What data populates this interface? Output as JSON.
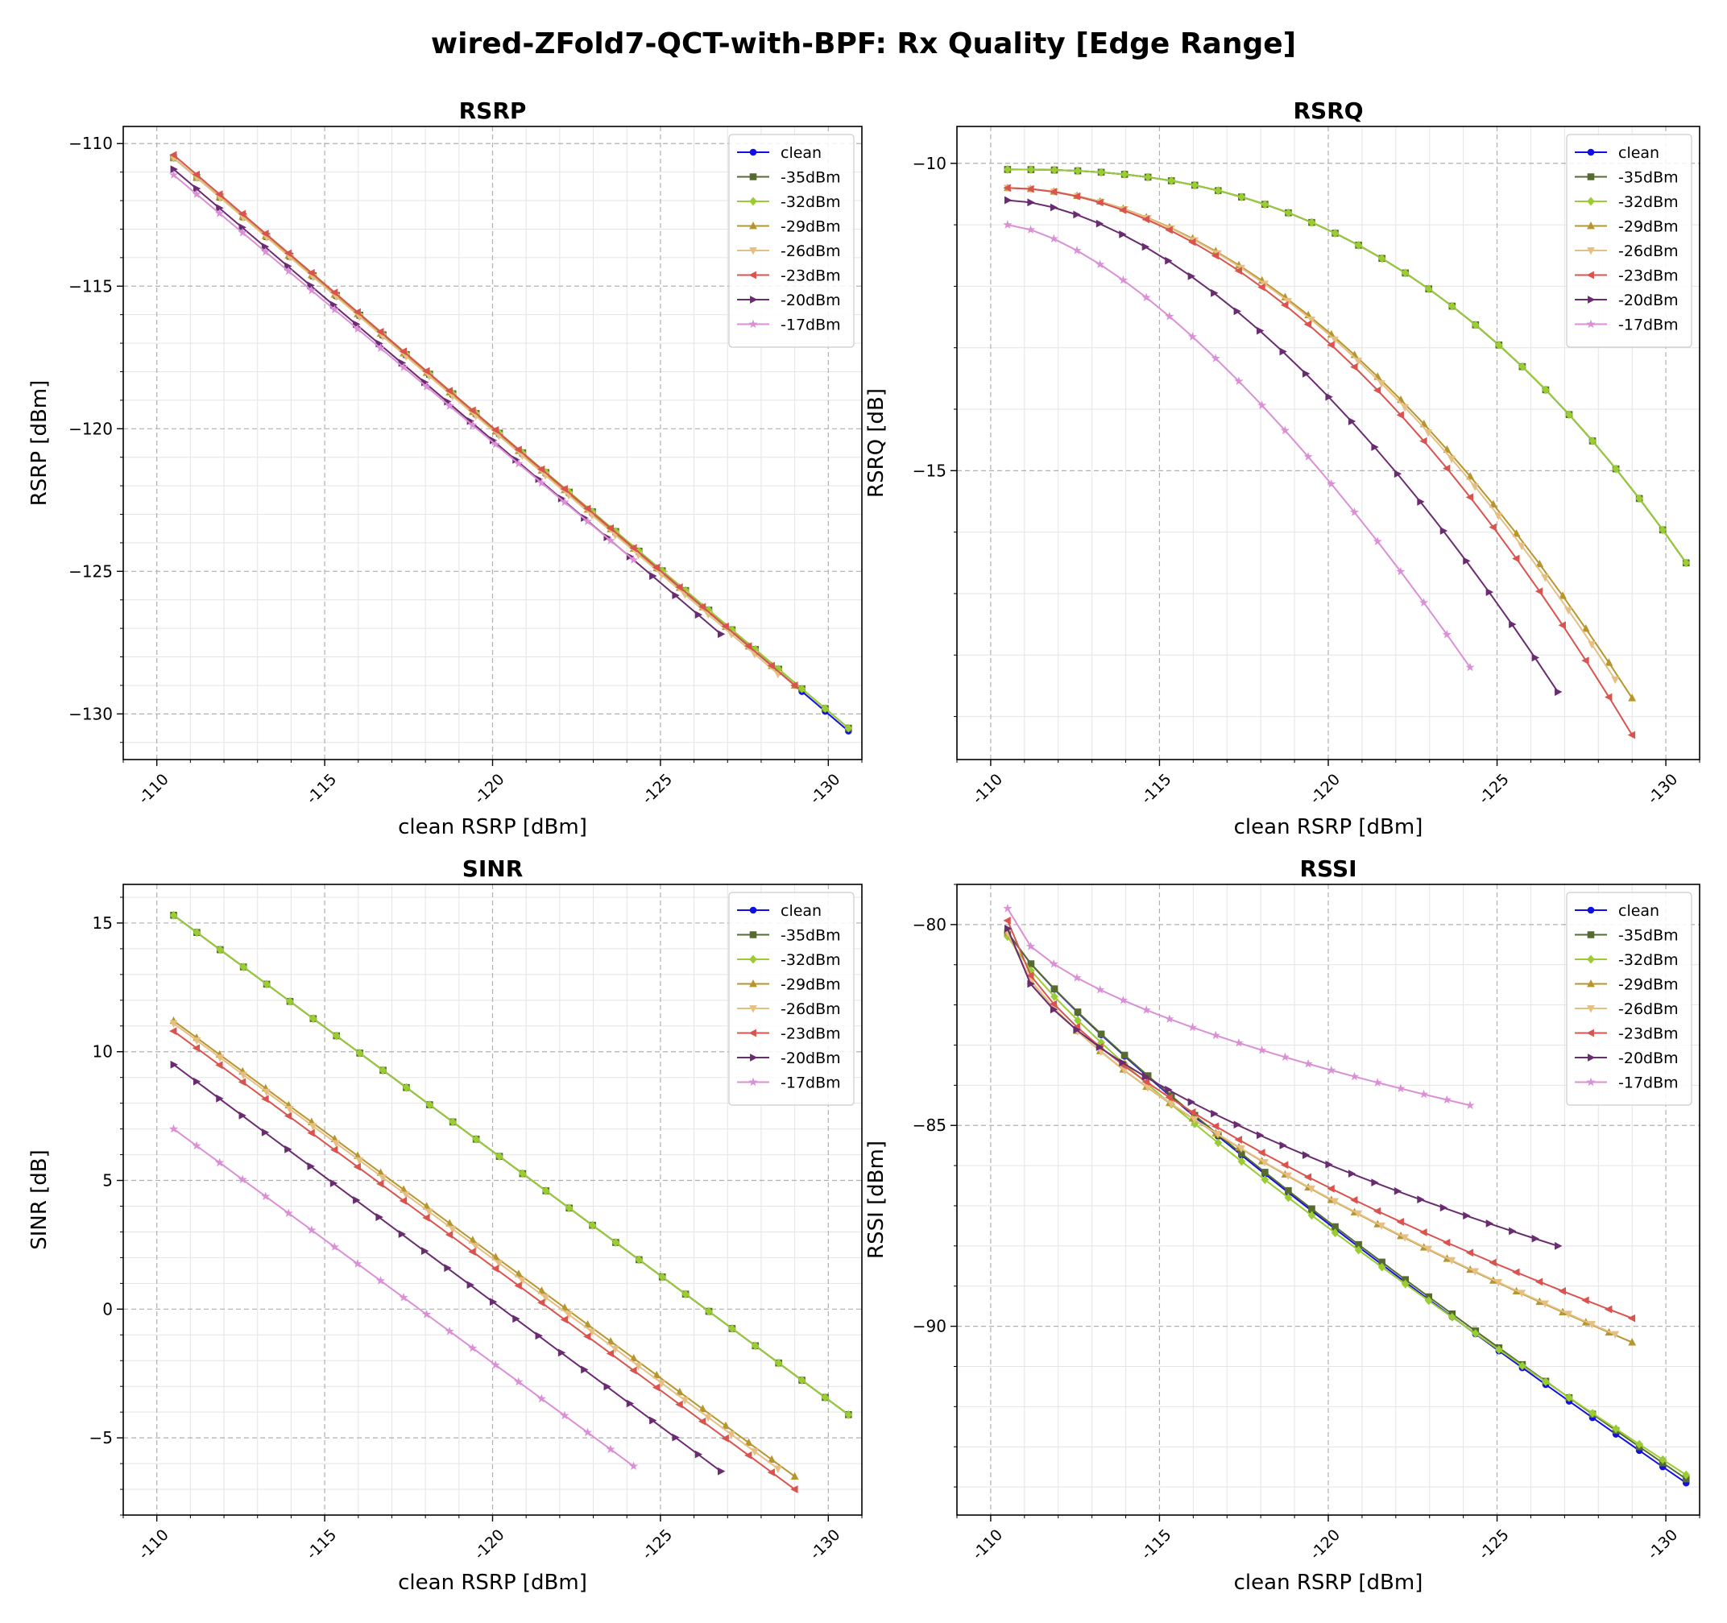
{
  "suptitle": "wired-ZFold7-QCT-with-BPF: Rx Quality [Edge Range]",
  "colors": {
    "clean": "#1010e6",
    "-35dBm": "#556b2f",
    "-32dBm": "#9acd32",
    "-29dBm": "#b8962e",
    "-26dBm": "#e6bf83",
    "-23dBm": "#d9534f",
    "-20dBm": "#6a2c70",
    "-17dBm": "#da8fd6"
  },
  "chart_data": [
    {
      "id": "rsrp",
      "type": "line",
      "title": "RSRP",
      "xlabel": "clean RSRP [dBm]",
      "ylabel": "RSRP [dBm]",
      "xlim": [
        -109,
        -131
      ],
      "ylim": [
        -131.6,
        -109.4
      ],
      "xticks": [
        -110,
        -115,
        -120,
        -125,
        -130
      ],
      "xtick_labels": [
        "-110",
        "-115",
        "-120",
        "-125",
        "-130"
      ],
      "yticks": [
        -110,
        -115,
        -120,
        -125,
        -130
      ],
      "ytick_labels": [
        "−110",
        "−115",
        "−120",
        "−125",
        "−130"
      ],
      "grid": true,
      "legend": "top-right",
      "series": [
        {
          "name": "clean",
          "x_start": -110.5,
          "x_end": -130.6,
          "n": 30,
          "y_start": -110.5,
          "y_end": -130.6,
          "curve": 1.0
        },
        {
          "name": "-35dBm",
          "x_start": -110.5,
          "x_end": -130.6,
          "n": 30,
          "y_start": -110.5,
          "y_end": -130.5,
          "curve": 1.0
        },
        {
          "name": "-32dBm",
          "x_start": -110.5,
          "x_end": -130.6,
          "n": 30,
          "y_start": -110.5,
          "y_end": -130.5,
          "curve": 1.0
        },
        {
          "name": "-29dBm",
          "x_start": -110.5,
          "x_end": -129.0,
          "n": 28,
          "y_start": -110.5,
          "y_end": -129.0,
          "curve": 1.0
        },
        {
          "name": "-26dBm",
          "x_start": -110.5,
          "x_end": -128.5,
          "n": 27,
          "y_start": -110.5,
          "y_end": -128.6,
          "curve": 1.0
        },
        {
          "name": "-23dBm",
          "x_start": -110.5,
          "x_end": -129.0,
          "n": 28,
          "y_start": -110.4,
          "y_end": -129.0,
          "curve": 1.0
        },
        {
          "name": "-20dBm",
          "x_start": -110.5,
          "x_end": -126.8,
          "n": 25,
          "y_start": -110.9,
          "y_end": -127.2,
          "curve": 1.0
        },
        {
          "name": "-17dBm",
          "x_start": -110.5,
          "x_end": -124.2,
          "n": 21,
          "y_start": -111.1,
          "y_end": -124.6,
          "curve": 1.0
        }
      ]
    },
    {
      "id": "rsrq",
      "type": "line",
      "title": "RSRQ",
      "xlabel": "clean RSRP [dBm]",
      "ylabel": "RSRQ [dB]",
      "xlim": [
        -109,
        -131
      ],
      "ylim": [
        -19.7,
        -9.4
      ],
      "xticks": [
        -110,
        -115,
        -120,
        -125,
        -130
      ],
      "xtick_labels": [
        "-110",
        "-115",
        "-120",
        "-125",
        "-130"
      ],
      "yticks": [
        -10,
        -15
      ],
      "ytick_labels": [
        "−10",
        "−15"
      ],
      "grid": true,
      "legend": "top-right",
      "series": [
        {
          "name": "clean",
          "x_start": -110.5,
          "x_end": -130.6,
          "n": 30,
          "y_start": -10.1,
          "y_end": -16.5,
          "curve": 2.5
        },
        {
          "name": "-35dBm",
          "x_start": -110.5,
          "x_end": -130.6,
          "n": 30,
          "y_start": -10.1,
          "y_end": -16.5,
          "curve": 2.5
        },
        {
          "name": "-32dBm",
          "x_start": -110.5,
          "x_end": -130.6,
          "n": 30,
          "y_start": -10.1,
          "y_end": -16.5,
          "curve": 2.5
        },
        {
          "name": "-29dBm",
          "x_start": -110.5,
          "x_end": -129.0,
          "n": 28,
          "y_start": -10.4,
          "y_end": -18.7,
          "curve": 1.9
        },
        {
          "name": "-26dBm",
          "x_start": -110.5,
          "x_end": -128.5,
          "n": 27,
          "y_start": -10.4,
          "y_end": -18.4,
          "curve": 1.9
        },
        {
          "name": "-23dBm",
          "x_start": -110.5,
          "x_end": -129.0,
          "n": 28,
          "y_start": -10.4,
          "y_end": -19.3,
          "curve": 1.9
        },
        {
          "name": "-20dBm",
          "x_start": -110.5,
          "x_end": -126.8,
          "n": 25,
          "y_start": -10.6,
          "y_end": -18.6,
          "curve": 1.7
        },
        {
          "name": "-17dBm",
          "x_start": -110.5,
          "x_end": -124.2,
          "n": 21,
          "y_start": -11.0,
          "y_end": -18.2,
          "curve": 1.5
        }
      ]
    },
    {
      "id": "sinr",
      "type": "line",
      "title": "SINR",
      "xlabel": "clean RSRP [dBm]",
      "ylabel": "SINR [dB]",
      "xlim": [
        -109,
        -131
      ],
      "ylim": [
        -8.0,
        16.5
      ],
      "xticks": [
        -110,
        -115,
        -120,
        -125,
        -130
      ],
      "xtick_labels": [
        "-110",
        "-115",
        "-120",
        "-125",
        "-130"
      ],
      "yticks": [
        15,
        10,
        5,
        0,
        -5
      ],
      "ytick_labels": [
        "15",
        "10",
        "5",
        "0",
        "−5"
      ],
      "grid": true,
      "legend": "top-right",
      "series": [
        {
          "name": "clean",
          "x_start": -110.5,
          "x_end": -130.6,
          "n": 30,
          "y_start": 15.3,
          "y_end": -4.1,
          "curve": 1.0
        },
        {
          "name": "-35dBm",
          "x_start": -110.5,
          "x_end": -130.6,
          "n": 30,
          "y_start": 15.3,
          "y_end": -4.1,
          "curve": 1.0
        },
        {
          "name": "-32dBm",
          "x_start": -110.5,
          "x_end": -130.6,
          "n": 30,
          "y_start": 15.3,
          "y_end": -4.1,
          "curve": 1.0
        },
        {
          "name": "-29dBm",
          "x_start": -110.5,
          "x_end": -129.0,
          "n": 28,
          "y_start": 11.2,
          "y_end": -6.5,
          "curve": 1.0
        },
        {
          "name": "-26dBm",
          "x_start": -110.5,
          "x_end": -128.5,
          "n": 27,
          "y_start": 11.1,
          "y_end": -6.2,
          "curve": 1.0
        },
        {
          "name": "-23dBm",
          "x_start": -110.5,
          "x_end": -129.0,
          "n": 28,
          "y_start": 10.8,
          "y_end": -7.0,
          "curve": 1.0
        },
        {
          "name": "-20dBm",
          "x_start": -110.5,
          "x_end": -126.8,
          "n": 25,
          "y_start": 9.5,
          "y_end": -6.3,
          "curve": 1.0
        },
        {
          "name": "-17dBm",
          "x_start": -110.5,
          "x_end": -124.2,
          "n": 21,
          "y_start": 7.0,
          "y_end": -6.1,
          "curve": 1.0
        }
      ]
    },
    {
      "id": "rssi",
      "type": "line",
      "title": "RSSI",
      "xlabel": "clean RSRP [dBm]",
      "ylabel": "RSSI [dBm]",
      "xlim": [
        -109,
        -131
      ],
      "ylim": [
        -94.7,
        -79.0
      ],
      "xticks": [
        -110,
        -115,
        -120,
        -125,
        -130
      ],
      "xtick_labels": [
        "-110",
        "-115",
        "-120",
        "-125",
        "-130"
      ],
      "yticks": [
        -80,
        -85,
        -90
      ],
      "ytick_labels": [
        "−80",
        "−85",
        "−90"
      ],
      "grid": true,
      "legend": "top-right",
      "series": [
        {
          "name": "clean",
          "x_start": -110.5,
          "x_end": -130.6,
          "n": 30,
          "y_start": -80.2,
          "y_end": -93.9,
          "curve": 0.85
        },
        {
          "name": "-35dBm",
          "x_start": -110.5,
          "x_end": -130.6,
          "n": 30,
          "y_start": -80.2,
          "y_end": -93.8,
          "curve": 0.85
        },
        {
          "name": "-32dBm",
          "x_start": -110.5,
          "x_end": -130.6,
          "n": 30,
          "y_start": -80.3,
          "y_end": -93.7,
          "curve": 0.82
        },
        {
          "name": "-29dBm",
          "x_start": -110.5,
          "x_end": -129.0,
          "n": 28,
          "y_start": -80.2,
          "y_end": -90.4,
          "curve": 0.65
        },
        {
          "name": "-26dBm",
          "x_start": -110.5,
          "x_end": -128.5,
          "n": 27,
          "y_start": -80.2,
          "y_end": -90.2,
          "curve": 0.65
        },
        {
          "name": "-23dBm",
          "x_start": -110.5,
          "x_end": -129.0,
          "n": 28,
          "y_start": -79.9,
          "y_end": -89.8,
          "curve": 0.6
        },
        {
          "name": "-20dBm",
          "x_start": -110.5,
          "x_end": -126.8,
          "n": 25,
          "y_start": -80.1,
          "y_end": -88.0,
          "curve": 0.55
        },
        {
          "name": "-17dBm",
          "x_start": -110.5,
          "x_end": -124.2,
          "n": 21,
          "y_start": -79.6,
          "y_end": -84.5,
          "curve": 0.55
        }
      ]
    }
  ],
  "markers": {
    "clean": "circle",
    "-35dBm": "square",
    "-32dBm": "diamond",
    "-29dBm": "triangle-up",
    "-26dBm": "triangle-down",
    "-23dBm": "triangle-left",
    "-20dBm": "triangle-right",
    "-17dBm": "star"
  }
}
